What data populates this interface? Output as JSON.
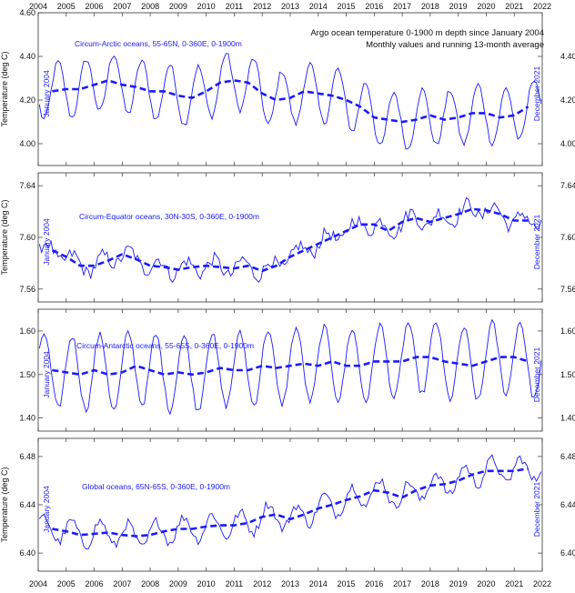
{
  "title_lines": [
    "Argo ocean temperature 0-1900 m depth since January 2004",
    "Monthly values and running 13-month average"
  ],
  "series_colors": {
    "monthly": "#1a1aff",
    "average": "#1a1aff",
    "axis": "#333333"
  },
  "start_label": "January 2004",
  "end_label": "December 2021",
  "ylabel": "Temperature (deg C)",
  "chart_data": [
    {
      "type": "line",
      "name": "Circum-Arctic oceans, 55-65N, 0-360E, 0-1900m",
      "x_range": [
        2004.0,
        2022.0
      ],
      "x_ticks": [
        "2004",
        "2005",
        "2006",
        "2007",
        "2008",
        "2009",
        "2010",
        "2011",
        "2012",
        "2013",
        "2014",
        "2015",
        "2016",
        "2017",
        "2018",
        "2019",
        "2020",
        "2021",
        "2022"
      ],
      "ylim": [
        3.9,
        4.6
      ],
      "y_ticks": [
        4.0,
        4.2,
        4.4,
        4.6
      ],
      "y_ticks_right": [
        4.0,
        4.2,
        4.4
      ],
      "y_tick_labels": [
        "4.00",
        "4.20",
        "4.40",
        "4.60"
      ],
      "y_tick_labels_right": [
        "4.00",
        "4.20",
        "4.40"
      ],
      "show_ylabel": true,
      "model": {
        "seasonal_amplitude": 0.13,
        "peak_phase_months": 8,
        "noise": 0.015
      },
      "avg": [
        [
          2004.5,
          4.24
        ],
        [
          2005.0,
          4.25
        ],
        [
          2005.5,
          4.25
        ],
        [
          2006.0,
          4.27
        ],
        [
          2006.5,
          4.29
        ],
        [
          2007.0,
          4.27
        ],
        [
          2007.5,
          4.26
        ],
        [
          2008.0,
          4.24
        ],
        [
          2008.5,
          4.24
        ],
        [
          2009.0,
          4.22
        ],
        [
          2009.5,
          4.21
        ],
        [
          2010.0,
          4.24
        ],
        [
          2010.5,
          4.28
        ],
        [
          2011.0,
          4.29
        ],
        [
          2011.5,
          4.28
        ],
        [
          2012.0,
          4.23
        ],
        [
          2012.5,
          4.2
        ],
        [
          2013.0,
          4.21
        ],
        [
          2013.5,
          4.24
        ],
        [
          2014.0,
          4.23
        ],
        [
          2014.5,
          4.22
        ],
        [
          2015.0,
          4.2
        ],
        [
          2015.5,
          4.17
        ],
        [
          2016.0,
          4.12
        ],
        [
          2016.5,
          4.11
        ],
        [
          2017.0,
          4.1
        ],
        [
          2017.5,
          4.11
        ],
        [
          2018.0,
          4.13
        ],
        [
          2018.5,
          4.11
        ],
        [
          2019.0,
          4.12
        ],
        [
          2019.5,
          4.14
        ],
        [
          2020.0,
          4.14
        ],
        [
          2020.5,
          4.12
        ],
        [
          2021.0,
          4.13
        ],
        [
          2021.5,
          4.17
        ]
      ]
    },
    {
      "type": "line",
      "name": "Circum-Equator oceans, 30N-30S, 0-360E, 0-1900m",
      "x_range": [
        2004.0,
        2022.0
      ],
      "x_ticks": [],
      "ylim": [
        7.55,
        7.65
      ],
      "y_ticks": [
        7.56,
        7.6,
        7.64
      ],
      "y_ticks_right": [
        7.56,
        7.6,
        7.64
      ],
      "y_tick_labels": [
        "7.56",
        "7.60",
        "7.64"
      ],
      "y_tick_labels_right": [
        "7.56",
        "7.60",
        "7.64"
      ],
      "show_ylabel": true,
      "model": {
        "seasonal_amplitude": 0.006,
        "peak_phase_months": 3,
        "noise": 0.005
      },
      "avg": [
        [
          2004.5,
          7.59
        ],
        [
          2005.0,
          7.585
        ],
        [
          2005.5,
          7.578
        ],
        [
          2006.0,
          7.578
        ],
        [
          2006.5,
          7.582
        ],
        [
          2007.0,
          7.587
        ],
        [
          2007.5,
          7.583
        ],
        [
          2008.0,
          7.578
        ],
        [
          2008.5,
          7.577
        ],
        [
          2009.0,
          7.575
        ],
        [
          2009.5,
          7.577
        ],
        [
          2010.0,
          7.578
        ],
        [
          2010.5,
          7.577
        ],
        [
          2011.0,
          7.576
        ],
        [
          2011.5,
          7.578
        ],
        [
          2012.0,
          7.574
        ],
        [
          2012.5,
          7.578
        ],
        [
          2013.0,
          7.585
        ],
        [
          2013.5,
          7.59
        ],
        [
          2014.0,
          7.595
        ],
        [
          2014.5,
          7.6
        ],
        [
          2015.0,
          7.605
        ],
        [
          2015.5,
          7.61
        ],
        [
          2016.0,
          7.61
        ],
        [
          2016.5,
          7.605
        ],
        [
          2017.0,
          7.612
        ],
        [
          2017.5,
          7.615
        ],
        [
          2018.0,
          7.612
        ],
        [
          2018.5,
          7.615
        ],
        [
          2019.0,
          7.618
        ],
        [
          2019.5,
          7.622
        ],
        [
          2020.0,
          7.621
        ],
        [
          2020.5,
          7.618
        ],
        [
          2021.0,
          7.613
        ],
        [
          2021.5,
          7.613
        ]
      ]
    },
    {
      "type": "line",
      "name": "Circum-Antarctic oceans, 55-65S, 0-360E, 0-1900m",
      "x_range": [
        2004.0,
        2022.0
      ],
      "x_ticks": [],
      "ylim": [
        1.37,
        1.65
      ],
      "y_ticks": [
        1.4,
        1.5,
        1.6
      ],
      "y_ticks_right": [
        1.4,
        1.5,
        1.6
      ],
      "y_tick_labels": [
        "1.40",
        "1.50",
        "1.60"
      ],
      "y_tick_labels_right": [
        "1.40",
        "1.50",
        "1.60"
      ],
      "show_ylabel": false,
      "model": {
        "seasonal_amplitude": 0.085,
        "peak_phase_months": 2,
        "noise": 0.008
      },
      "avg": [
        [
          2004.5,
          1.51
        ],
        [
          2005.0,
          1.505
        ],
        [
          2005.5,
          1.5
        ],
        [
          2006.0,
          1.51
        ],
        [
          2006.5,
          1.5
        ],
        [
          2007.0,
          1.505
        ],
        [
          2007.5,
          1.52
        ],
        [
          2008.0,
          1.51
        ],
        [
          2008.5,
          1.5
        ],
        [
          2009.0,
          1.505
        ],
        [
          2009.5,
          1.5
        ],
        [
          2010.0,
          1.505
        ],
        [
          2010.5,
          1.515
        ],
        [
          2011.0,
          1.51
        ],
        [
          2011.5,
          1.51
        ],
        [
          2012.0,
          1.52
        ],
        [
          2012.5,
          1.515
        ],
        [
          2013.0,
          1.52
        ],
        [
          2013.5,
          1.525
        ],
        [
          2014.0,
          1.52
        ],
        [
          2014.5,
          1.53
        ],
        [
          2015.0,
          1.52
        ],
        [
          2015.5,
          1.52
        ],
        [
          2016.0,
          1.53
        ],
        [
          2016.5,
          1.53
        ],
        [
          2017.0,
          1.53
        ],
        [
          2017.5,
          1.54
        ],
        [
          2018.0,
          1.54
        ],
        [
          2018.5,
          1.53
        ],
        [
          2019.0,
          1.525
        ],
        [
          2019.5,
          1.52
        ],
        [
          2020.0,
          1.53
        ],
        [
          2020.5,
          1.54
        ],
        [
          2021.0,
          1.54
        ],
        [
          2021.5,
          1.53
        ]
      ]
    },
    {
      "type": "line",
      "name": "Global oceans, 65N-65S, 0-360E, 0-1900m",
      "x_range": [
        2004.0,
        2022.0
      ],
      "x_ticks": [
        "2004",
        "2005",
        "2006",
        "2007",
        "2008",
        "2009",
        "2010",
        "2011",
        "2012",
        "2013",
        "2014",
        "2015",
        "2016",
        "2017",
        "2018",
        "2019",
        "2020",
        "2021",
        "2022"
      ],
      "ylim": [
        6.385,
        6.495
      ],
      "y_ticks": [
        6.4,
        6.44,
        6.48
      ],
      "y_ticks_right": [
        6.4,
        6.44,
        6.48
      ],
      "y_tick_labels": [
        "6.40",
        "6.44",
        "6.48"
      ],
      "y_tick_labels_right": [
        "6.40",
        "6.44",
        "6.48"
      ],
      "show_ylabel": true,
      "model": {
        "seasonal_amplitude": 0.01,
        "peak_phase_months": 2,
        "noise": 0.004
      },
      "avg": [
        [
          2004.5,
          6.42
        ],
        [
          2005.0,
          6.418
        ],
        [
          2005.5,
          6.415
        ],
        [
          2006.0,
          6.416
        ],
        [
          2006.5,
          6.417
        ],
        [
          2007.0,
          6.415
        ],
        [
          2007.5,
          6.414
        ],
        [
          2008.0,
          6.415
        ],
        [
          2008.5,
          6.418
        ],
        [
          2009.0,
          6.42
        ],
        [
          2009.5,
          6.42
        ],
        [
          2010.0,
          6.422
        ],
        [
          2010.5,
          6.423
        ],
        [
          2011.0,
          6.423
        ],
        [
          2011.5,
          6.425
        ],
        [
          2012.0,
          6.43
        ],
        [
          2012.5,
          6.432
        ],
        [
          2013.0,
          6.428
        ],
        [
          2013.5,
          6.432
        ],
        [
          2014.0,
          6.437
        ],
        [
          2014.5,
          6.44
        ],
        [
          2015.0,
          6.444
        ],
        [
          2015.5,
          6.447
        ],
        [
          2016.0,
          6.452
        ],
        [
          2016.5,
          6.45
        ],
        [
          2017.0,
          6.446
        ],
        [
          2017.5,
          6.452
        ],
        [
          2018.0,
          6.456
        ],
        [
          2018.5,
          6.457
        ],
        [
          2019.0,
          6.46
        ],
        [
          2019.5,
          6.465
        ],
        [
          2020.0,
          6.468
        ],
        [
          2020.5,
          6.468
        ],
        [
          2021.0,
          6.468
        ],
        [
          2021.5,
          6.47
        ]
      ]
    }
  ]
}
